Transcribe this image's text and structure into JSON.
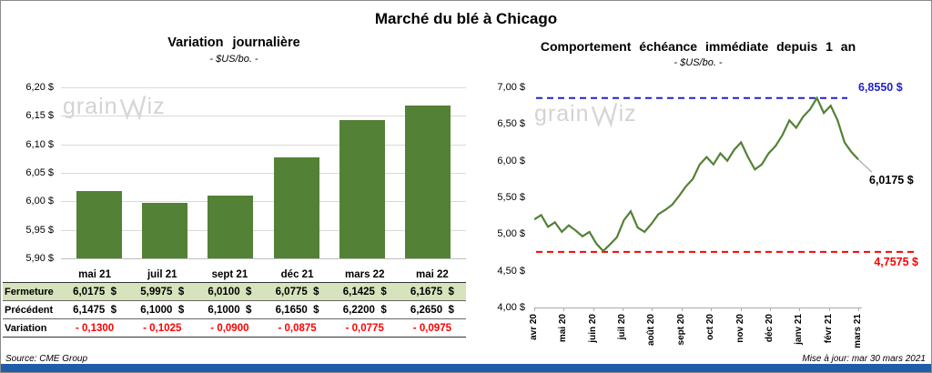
{
  "page": {
    "title": "Marché du blé à Chicago",
    "source": "Source: CME Group",
    "updated": "Mise à jour: mar 30 mars 2021",
    "watermark": {
      "text": "grainwiz",
      "prefix": "grain",
      "suffix": "iz"
    },
    "bottom_bar_color": "#1f5da8"
  },
  "chart_data": [
    {
      "type": "bar",
      "title": "Variation journalière",
      "subtitle": "- $US/bo. -",
      "categories": [
        "mai 21",
        "juil 21",
        "sept 21",
        "déc 21",
        "mars 22",
        "mai 22"
      ],
      "values": [
        6.0175,
        5.9975,
        6.01,
        6.0775,
        6.1425,
        6.1675
      ],
      "ylim": [
        5.9,
        6.2
      ],
      "yticks": [
        5.9,
        5.95,
        6.0,
        6.05,
        6.1,
        6.15,
        6.2
      ],
      "ytick_labels": [
        "5,90 $",
        "5,95 $",
        "6,00 $",
        "6,05 $",
        "6,10 $",
        "6,15 $",
        "6,20 $"
      ],
      "bar_color": "#538135",
      "grid": true,
      "legend": "none"
    },
    {
      "type": "line",
      "title": "Comportement échéance immédiate depuis 1 an",
      "subtitle": "- $US/bo. -",
      "x_labels": [
        "avr 20",
        "mai 20",
        "juin 20",
        "juil 20",
        "août 20",
        "sept 20",
        "oct 20",
        "nov 20",
        "déc 20",
        "janv 21",
        "févr 21",
        "mars 21"
      ],
      "values": [
        5.2,
        5.26,
        5.1,
        5.16,
        5.03,
        5.12,
        5.05,
        4.97,
        5.03,
        4.87,
        4.77,
        4.86,
        4.96,
        5.19,
        5.31,
        5.09,
        5.03,
        5.14,
        5.27,
        5.33,
        5.4,
        5.52,
        5.65,
        5.75,
        5.95,
        6.05,
        5.95,
        6.1,
        6.0,
        6.15,
        6.25,
        6.05,
        5.88,
        5.95,
        6.1,
        6.2,
        6.35,
        6.55,
        6.45,
        6.6,
        6.7,
        6.855,
        6.65,
        6.75,
        6.55,
        6.25,
        6.12,
        6.0175
      ],
      "ylim": [
        4.0,
        7.0
      ],
      "yticks": [
        4.0,
        4.5,
        5.0,
        5.5,
        6.0,
        6.5,
        7.0
      ],
      "ytick_labels": [
        "4,00 $",
        "4,50 $",
        "5,00 $",
        "5,50 $",
        "6,00 $",
        "6,50 $",
        "7,00 $"
      ],
      "line_color": "#538135",
      "max_line": {
        "value": 6.855,
        "label": "6,8550 $",
        "color": "#2222cc"
      },
      "min_line": {
        "value": 4.7575,
        "label": "4,7575 $",
        "color": "#ff0000"
      },
      "last_label": "6,0175 $",
      "grid": false,
      "legend": "none"
    }
  ],
  "table": {
    "rows": [
      {
        "label": "Fermeture",
        "style": "fermeture",
        "values": [
          "6,0175  $",
          "5,9975  $",
          "6,0100  $",
          "6,0775  $",
          "6,1425  $",
          "6,1675  $"
        ]
      },
      {
        "label": "Précédent",
        "style": "precedent",
        "values": [
          "6,1475  $",
          "6,1000  $",
          "6,1000  $",
          "6,1650  $",
          "6,2200  $",
          "6,2650  $"
        ]
      },
      {
        "label": "Variation",
        "style": "variation",
        "values": [
          "- 0,1300",
          "- 0,1025",
          "- 0,0900",
          "- 0,0875",
          "- 0,0775",
          "- 0,0975"
        ]
      }
    ]
  }
}
